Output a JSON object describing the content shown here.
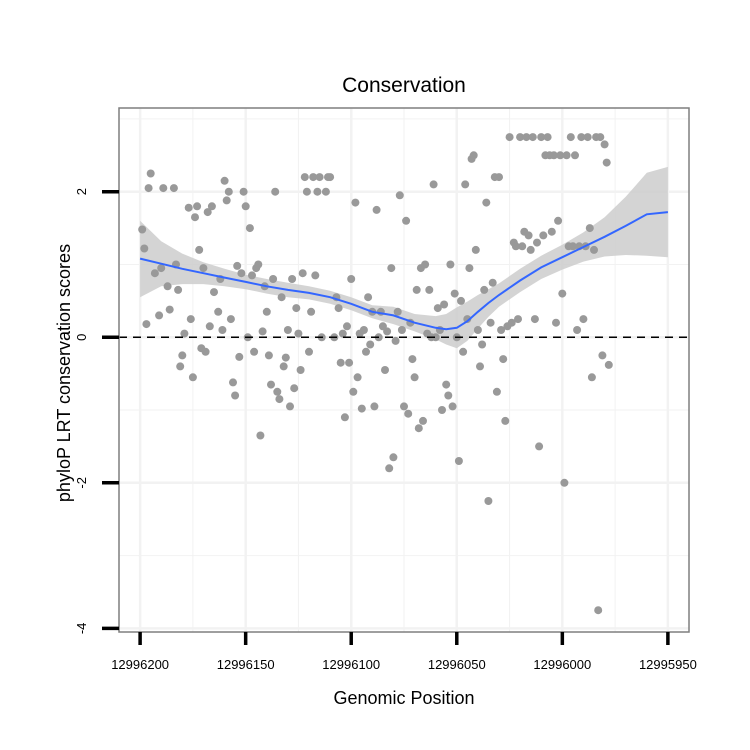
{
  "chart_data": {
    "type": "scatter",
    "title": "Conservation",
    "xlabel": "Genomic Position",
    "ylabel": "phyloP LRT conservation scores",
    "x_reversed": true,
    "xlim": [
      12996200,
      12995950
    ],
    "ylim": [
      -4,
      3
    ],
    "x_ticks": [
      12996200,
      12996150,
      12996100,
      12996050,
      12996000,
      12995950
    ],
    "x_tick_labels": [
      "12996200",
      "12996150",
      "12996100",
      "12996050",
      "12996000",
      "12995950"
    ],
    "y_ticks": [
      2,
      0,
      -2,
      -4
    ],
    "y_tick_labels": [
      "2",
      "0",
      "-2",
      "-4"
    ],
    "grid": true,
    "reference_line": {
      "y": 0,
      "style": "dashed",
      "color": "#000000"
    },
    "colors": {
      "points": "#999999",
      "smooth": "#3366FF",
      "ribbon": "#CCCCCC",
      "grid": "#F2F2F2",
      "panel_border": "#7F7F7F"
    },
    "points": [
      [
        12996199,
        1.48
      ],
      [
        12996198,
        1.22
      ],
      [
        12996197,
        0.18
      ],
      [
        12996196,
        2.05
      ],
      [
        12996195,
        2.25
      ],
      [
        12996193,
        0.88
      ],
      [
        12996191,
        0.3
      ],
      [
        12996190,
        0.95
      ],
      [
        12996189,
        2.05
      ],
      [
        12996187,
        0.7
      ],
      [
        12996186,
        0.38
      ],
      [
        12996184,
        2.05
      ],
      [
        12996183,
        1.0
      ],
      [
        12996182,
        0.65
      ],
      [
        12996181,
        -0.4
      ],
      [
        12996180,
        -0.25
      ],
      [
        12996179,
        0.05
      ],
      [
        12996177,
        1.78
      ],
      [
        12996176,
        0.25
      ],
      [
        12996175,
        -0.55
      ],
      [
        12996174,
        1.65
      ],
      [
        12996173,
        1.8
      ],
      [
        12996172,
        1.2
      ],
      [
        12996171,
        -0.15
      ],
      [
        12996170,
        0.95
      ],
      [
        12996169,
        -0.2
      ],
      [
        12996168,
        1.72
      ],
      [
        12996167,
        0.15
      ],
      [
        12996166,
        1.8
      ],
      [
        12996165,
        0.62
      ],
      [
        12996163,
        0.35
      ],
      [
        12996162,
        0.8
      ],
      [
        12996161,
        0.1
      ],
      [
        12996160,
        2.15
      ],
      [
        12996159,
        1.88
      ],
      [
        12996158,
        2.0
      ],
      [
        12996157,
        0.25
      ],
      [
        12996156,
        -0.62
      ],
      [
        12996155,
        -0.8
      ],
      [
        12996154,
        0.98
      ],
      [
        12996153,
        -0.27
      ],
      [
        12996152,
        0.88
      ],
      [
        12996151,
        2.0
      ],
      [
        12996150,
        1.8
      ],
      [
        12996149,
        0.0
      ],
      [
        12996148,
        1.5
      ],
      [
        12996147,
        0.85
      ],
      [
        12996146,
        -0.2
      ],
      [
        12996145,
        0.95
      ],
      [
        12996144,
        1.0
      ],
      [
        12996143,
        -1.35
      ],
      [
        12996142,
        0.08
      ],
      [
        12996141,
        0.7
      ],
      [
        12996140,
        0.35
      ],
      [
        12996139,
        -0.25
      ],
      [
        12996138,
        -0.65
      ],
      [
        12996137,
        0.8
      ],
      [
        12996136,
        2.0
      ],
      [
        12996135,
        -0.75
      ],
      [
        12996134,
        -0.85
      ],
      [
        12996133,
        0.55
      ],
      [
        12996132,
        -0.4
      ],
      [
        12996131,
        -0.28
      ],
      [
        12996130,
        0.1
      ],
      [
        12996129,
        -0.95
      ],
      [
        12996128,
        0.8
      ],
      [
        12996127,
        -0.7
      ],
      [
        12996126,
        0.4
      ],
      [
        12996125,
        0.05
      ],
      [
        12996124,
        -0.45
      ],
      [
        12996123,
        0.88
      ],
      [
        12996122,
        2.2
      ],
      [
        12996121,
        2.0
      ],
      [
        12996120,
        -0.2
      ],
      [
        12996119,
        0.35
      ],
      [
        12996118,
        2.2
      ],
      [
        12996117,
        0.85
      ],
      [
        12996116,
        2.0
      ],
      [
        12996115,
        2.2
      ],
      [
        12996114,
        0.0
      ],
      [
        12996112,
        2.0
      ],
      [
        12996111,
        2.2
      ],
      [
        12996110,
        2.2
      ],
      [
        12996108,
        0.0
      ],
      [
        12996107,
        0.55
      ],
      [
        12996106,
        0.4
      ],
      [
        12996105,
        -0.35
      ],
      [
        12996104,
        0.05
      ],
      [
        12996103,
        -1.1
      ],
      [
        12996102,
        0.15
      ],
      [
        12996101,
        -0.35
      ],
      [
        12996100,
        0.8
      ],
      [
        12996099,
        -0.75
      ],
      [
        12996098,
        1.85
      ],
      [
        12996097,
        -0.55
      ],
      [
        12996096,
        0.05
      ],
      [
        12996095,
        -0.98
      ],
      [
        12996094,
        0.1
      ],
      [
        12996093,
        -0.2
      ],
      [
        12996092,
        0.55
      ],
      [
        12996091,
        -0.1
      ],
      [
        12996090,
        0.35
      ],
      [
        12996089,
        -0.95
      ],
      [
        12996088,
        1.75
      ],
      [
        12996087,
        0.0
      ],
      [
        12996086,
        0.35
      ],
      [
        12996085,
        0.15
      ],
      [
        12996084,
        -0.45
      ],
      [
        12996083,
        0.08
      ],
      [
        12996082,
        -1.8
      ],
      [
        12996081,
        0.95
      ],
      [
        12996080,
        -1.65
      ],
      [
        12996079,
        -0.05
      ],
      [
        12996078,
        0.35
      ],
      [
        12996077,
        1.95
      ],
      [
        12996076,
        0.1
      ],
      [
        12996075,
        -0.95
      ],
      [
        12996074,
        1.6
      ],
      [
        12996073,
        -1.05
      ],
      [
        12996072,
        0.2
      ],
      [
        12996071,
        -0.3
      ],
      [
        12996070,
        -0.55
      ],
      [
        12996069,
        0.65
      ],
      [
        12996068,
        -1.25
      ],
      [
        12996067,
        0.95
      ],
      [
        12996066,
        -1.15
      ],
      [
        12996065,
        1.0
      ],
      [
        12996064,
        0.05
      ],
      [
        12996063,
        0.65
      ],
      [
        12996062,
        0.0
      ],
      [
        12996061,
        2.1
      ],
      [
        12996060,
        0.0
      ],
      [
        12996059,
        0.4
      ],
      [
        12996058,
        0.1
      ],
      [
        12996057,
        -1.0
      ],
      [
        12996056,
        0.45
      ],
      [
        12996055,
        -0.65
      ],
      [
        12996054,
        -0.8
      ],
      [
        12996053,
        1.0
      ],
      [
        12996052,
        -0.95
      ],
      [
        12996051,
        0.6
      ],
      [
        12996050,
        0.0
      ],
      [
        12996049,
        -1.7
      ],
      [
        12996048,
        0.5
      ],
      [
        12996047,
        -0.2
      ],
      [
        12996046,
        2.1
      ],
      [
        12996045,
        0.25
      ],
      [
        12996044,
        0.95
      ],
      [
        12996043,
        2.45
      ],
      [
        12996042,
        2.5
      ],
      [
        12996041,
        1.2
      ],
      [
        12996040,
        0.1
      ],
      [
        12996039,
        -0.4
      ],
      [
        12996038,
        -0.1
      ],
      [
        12996037,
        0.65
      ],
      [
        12996036,
        1.85
      ],
      [
        12996035,
        -2.25
      ],
      [
        12996034,
        0.2
      ],
      [
        12996033,
        0.75
      ],
      [
        12996032,
        2.2
      ],
      [
        12996031,
        -0.75
      ],
      [
        12996030,
        2.2
      ],
      [
        12996029,
        0.1
      ],
      [
        12996028,
        -0.3
      ],
      [
        12996027,
        -1.15
      ],
      [
        12996026,
        0.15
      ],
      [
        12996025,
        2.75
      ],
      [
        12996024,
        0.2
      ],
      [
        12996023,
        1.3
      ],
      [
        12996022,
        1.25
      ],
      [
        12996021,
        0.25
      ],
      [
        12996020,
        2.75
      ],
      [
        12996019,
        1.25
      ],
      [
        12996018,
        1.45
      ],
      [
        12996017,
        2.75
      ],
      [
        12996016,
        1.4
      ],
      [
        12996015,
        1.2
      ],
      [
        12996014,
        2.75
      ],
      [
        12996013,
        0.25
      ],
      [
        12996012,
        1.3
      ],
      [
        12996011,
        -1.5
      ],
      [
        12996010,
        2.75
      ],
      [
        12996009,
        1.4
      ],
      [
        12996008,
        2.5
      ],
      [
        12996007,
        2.75
      ],
      [
        12996006,
        2.5
      ],
      [
        12996005,
        1.45
      ],
      [
        12996004,
        2.5
      ],
      [
        12996003,
        0.2
      ],
      [
        12996002,
        1.6
      ],
      [
        12996001,
        2.5
      ],
      [
        12996000,
        0.6
      ],
      [
        12995999,
        -2.0
      ],
      [
        12995998,
        2.5
      ],
      [
        12995997,
        1.25
      ],
      [
        12995996,
        2.75
      ],
      [
        12995995,
        1.25
      ],
      [
        12995994,
        2.5
      ],
      [
        12995993,
        0.1
      ],
      [
        12995992,
        1.25
      ],
      [
        12995991,
        2.75
      ],
      [
        12995990,
        0.25
      ],
      [
        12995989,
        1.25
      ],
      [
        12995988,
        2.75
      ],
      [
        12995987,
        1.5
      ],
      [
        12995986,
        -0.55
      ],
      [
        12995985,
        1.2
      ],
      [
        12995984,
        2.75
      ],
      [
        12995983,
        -3.75
      ],
      [
        12995982,
        2.75
      ],
      [
        12995981,
        -0.25
      ],
      [
        12995980,
        2.65
      ],
      [
        12995979,
        2.4
      ],
      [
        12995978,
        -0.38
      ]
    ],
    "smooth": {
      "x": [
        12996200,
        12996190,
        12996180,
        12996170,
        12996160,
        12996150,
        12996140,
        12996130,
        12996120,
        12996110,
        12996100,
        12996090,
        12996080,
        12996070,
        12996060,
        12996055,
        12996050,
        12996045,
        12996040,
        12996035,
        12996030,
        12996020,
        12996010,
        12996000,
        12995990,
        12995980,
        12995970,
        12995960,
        12995950
      ],
      "y": [
        1.08,
        1.01,
        0.94,
        0.88,
        0.82,
        0.76,
        0.7,
        0.65,
        0.61,
        0.55,
        0.46,
        0.35,
        0.3,
        0.2,
        0.13,
        0.11,
        0.13,
        0.22,
        0.35,
        0.47,
        0.58,
        0.78,
        0.96,
        1.1,
        1.24,
        1.38,
        1.53,
        1.69,
        1.72
      ],
      "lower": [
        0.55,
        0.7,
        0.73,
        0.73,
        0.7,
        0.66,
        0.6,
        0.55,
        0.52,
        0.46,
        0.37,
        0.26,
        0.18,
        0.08,
        -0.03,
        -0.1,
        -0.15,
        -0.05,
        0.12,
        0.28,
        0.42,
        0.62,
        0.8,
        0.93,
        1.04,
        1.11,
        1.13,
        1.12,
        1.1
      ],
      "upper": [
        1.6,
        1.32,
        1.15,
        1.03,
        0.94,
        0.86,
        0.8,
        0.75,
        0.7,
        0.64,
        0.55,
        0.44,
        0.42,
        0.32,
        0.29,
        0.32,
        0.41,
        0.49,
        0.58,
        0.66,
        0.74,
        0.94,
        1.12,
        1.27,
        1.44,
        1.65,
        1.93,
        2.26,
        2.34
      ]
    }
  }
}
